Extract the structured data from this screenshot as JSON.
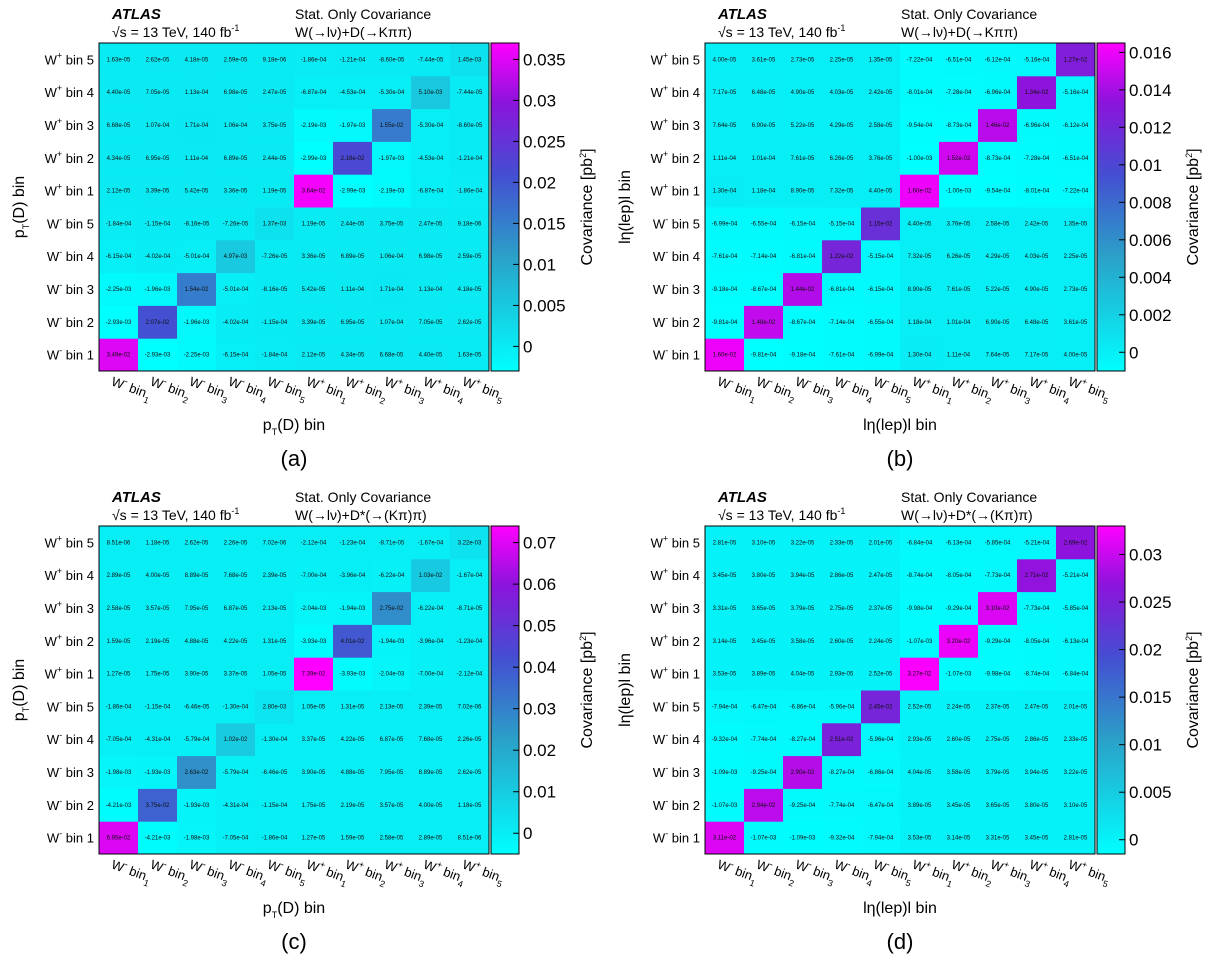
{
  "panels": [
    {
      "atlas": "ATLAS",
      "energy": "√s = 13 TeV, 140 fb",
      "energy_sup": "-1",
      "header1": "Stat. Only Covariance",
      "header2": "W(→lν)+D(→Kππ)",
      "label": "(a)",
      "xtitle": "p",
      "xtitle_sub": "T",
      "xtitle_rest": "(D) bin",
      "ytitle": "p",
      "ytitle_sub": "T",
      "ytitle_rest": "(D) bin",
      "ctitle": "Covariance [pb",
      "ctitle_sup": "2",
      "ctitle_end": "]"
    },
    {
      "atlas": "ATLAS",
      "energy": "√s = 13 TeV, 140 fb",
      "energy_sup": "-1",
      "header1": "Stat. Only Covariance",
      "header2": "W(→lν)+D(→Kππ)",
      "label": "(b)",
      "xtitle": "lη(lep)l bin",
      "xtitle_sub": "",
      "xtitle_rest": "",
      "ytitle": "lη(lep)l bin",
      "ytitle_sub": "",
      "ytitle_rest": "",
      "ctitle": "Covariance [pb",
      "ctitle_sup": "2",
      "ctitle_end": "]"
    },
    {
      "atlas": "ATLAS",
      "energy": "√s = 13 TeV, 140 fb",
      "energy_sup": "-1",
      "header1": "Stat. Only Covariance",
      "header2": "W(→lν)+D*(→(Kπ)π)",
      "label": "(c)",
      "xtitle": "p",
      "xtitle_sub": "T",
      "xtitle_rest": "(D) bin",
      "ytitle": "p",
      "ytitle_sub": "T",
      "ytitle_rest": "(D) bin",
      "ctitle": "Covariance [pb",
      "ctitle_sup": "2",
      "ctitle_end": "]"
    },
    {
      "atlas": "ATLAS",
      "energy": "√s = 13 TeV, 140 fb",
      "energy_sup": "-1",
      "header1": "Stat. Only Covariance",
      "header2": "W(→lν)+D*(→(Kπ)π)",
      "label": "(d)",
      "xtitle": "lη(lep)l bin",
      "xtitle_sub": "",
      "xtitle_rest": "",
      "ytitle": "lη(lep)l bin",
      "ytitle_sub": "",
      "ytitle_rest": "",
      "ctitle": "Covariance [pb",
      "ctitle_sup": "2",
      "ctitle_end": "]"
    }
  ],
  "chart_data": [
    {
      "type": "heatmap",
      "categories": [
        [
          "W",
          "-",
          "bin 1"
        ],
        [
          "W",
          "-",
          "bin 2"
        ],
        [
          "W",
          "-",
          "bin 3"
        ],
        [
          "W",
          "-",
          "bin 4"
        ],
        [
          "W",
          "-",
          "bin 5"
        ],
        [
          "W",
          "+",
          "bin 1"
        ],
        [
          "W",
          "+",
          "bin 2"
        ],
        [
          "W",
          "+",
          "bin 3"
        ],
        [
          "W",
          "+",
          "bin 4"
        ],
        [
          "W",
          "+",
          "bin 5"
        ]
      ],
      "zlim": [
        -0.003,
        0.037
      ],
      "colorbar_ticks": [
        0,
        0.005,
        0.01,
        0.015,
        0.02,
        0.025,
        0.03,
        0.035
      ],
      "colorbar_tick_labels": [
        "0",
        "0.005",
        "0.01",
        "0.015",
        "0.02",
        "0.025",
        "0.03",
        "0.035"
      ],
      "labels": [
        [
          "3.49e-02",
          "-2.93e-03",
          "-2.25e-03",
          "-6.15e-04",
          "-1.84e-04",
          "2.12e-05",
          "4.34e-05",
          "6.68e-05",
          "4.40e-05",
          "1.63e-05"
        ],
        [
          "-2.93e-03",
          "2.07e-02",
          "-1.96e-03",
          "-4.02e-04",
          "-1.15e-04",
          "3.39e-05",
          "6.95e-05",
          "1.07e-04",
          "7.05e-05",
          "2.62e-05"
        ],
        [
          "-2.25e-03",
          "-1.96e-03",
          "1.54e-02",
          "-5.01e-04",
          "-8.16e-05",
          "5.42e-05",
          "1.11e-04",
          "1.71e-04",
          "1.13e-04",
          "4.18e-05"
        ],
        [
          "-6.15e-04",
          "-4.02e-04",
          "-5.01e-04",
          "4.97e-03",
          "-7.26e-05",
          "3.36e-05",
          "6.89e-05",
          "1.06e-04",
          "6.98e-05",
          "2.59e-05"
        ],
        [
          "-1.84e-04",
          "-1.15e-04",
          "-8.16e-05",
          "-7.26e-05",
          "1.37e-03",
          "1.19e-05",
          "2.44e-05",
          "3.75e-05",
          "2.47e-05",
          "9.18e-06"
        ],
        [
          "2.12e-05",
          "3.39e-05",
          "5.42e-05",
          "3.36e-05",
          "1.19e-05",
          "3.64e-02",
          "-2.99e-03",
          "-2.19e-03",
          "-6.87e-04",
          "-1.86e-04"
        ],
        [
          "4.34e-05",
          "6.95e-05",
          "1.11e-04",
          "6.89e-05",
          "2.44e-05",
          "-2.99e-03",
          "2.18e-02",
          "-1.97e-03",
          "-4.53e-04",
          "-1.21e-04"
        ],
        [
          "6.68e-05",
          "1.07e-04",
          "1.71e-04",
          "1.06e-04",
          "3.75e-05",
          "-2.19e-03",
          "-1.97e-03",
          "1.55e-02",
          "-5.30e-04",
          "-8.60e-05"
        ],
        [
          "4.40e-05",
          "7.05e-05",
          "1.13e-04",
          "6.98e-05",
          "2.47e-05",
          "-6.87e-04",
          "-4.53e-04",
          "-5.30e-04",
          "5.10e-03",
          "-7.44e-05"
        ],
        [
          "1.63e-05",
          "2.62e-05",
          "4.18e-05",
          "2.59e-05",
          "9.18e-06",
          "-1.86e-04",
          "-1.21e-04",
          "-8.60e-05",
          "-7.44e-05",
          "1.45e-03"
        ]
      ]
    },
    {
      "type": "heatmap",
      "categories": [
        [
          "W",
          "-",
          "bin 1"
        ],
        [
          "W",
          "-",
          "bin 2"
        ],
        [
          "W",
          "-",
          "bin 3"
        ],
        [
          "W",
          "-",
          "bin 4"
        ],
        [
          "W",
          "-",
          "bin 5"
        ],
        [
          "W",
          "+",
          "bin 1"
        ],
        [
          "W",
          "+",
          "bin 2"
        ],
        [
          "W",
          "+",
          "bin 3"
        ],
        [
          "W",
          "+",
          "bin 4"
        ],
        [
          "W",
          "+",
          "bin 5"
        ]
      ],
      "zlim": [
        -0.001,
        0.0165
      ],
      "colorbar_ticks": [
        0,
        0.002,
        0.004,
        0.006,
        0.008,
        0.01,
        0.012,
        0.014,
        0.016
      ],
      "colorbar_tick_labels": [
        "0",
        "0.002",
        "0.004",
        "0.006",
        "0.008",
        "0.01",
        "0.012",
        "0.014",
        "0.016"
      ],
      "labels": [
        [
          "1.60e-02",
          "-9.81e-04",
          "-9.18e-04",
          "-7.61e-04",
          "-6.99e-04",
          "1.30e-04",
          "1.11e-04",
          "7.64e-05",
          "7.17e-05",
          "4.00e-05"
        ],
        [
          "-9.81e-04",
          "1.48e-02",
          "-8.67e-04",
          "-7.14e-04",
          "-6.55e-04",
          "1.18e-04",
          "1.01e-04",
          "6.90e-05",
          "6.48e-05",
          "3.61e-05"
        ],
        [
          "-9.18e-04",
          "-8.67e-04",
          "1.44e-02",
          "-6.81e-04",
          "-6.15e-04",
          "8.90e-05",
          "7.61e-05",
          "5.22e-05",
          "4.90e-05",
          "2.73e-05"
        ],
        [
          "-7.61e-04",
          "-7.14e-04",
          "-6.81e-04",
          "1.22e-02",
          "-5.15e-04",
          "7.32e-05",
          "6.26e-05",
          "4.29e-05",
          "4.03e-05",
          "2.25e-05"
        ],
        [
          "-6.99e-04",
          "-6.55e-04",
          "-6.15e-04",
          "-5.15e-04",
          "1.15e-02",
          "4.40e-05",
          "3.76e-05",
          "2.58e-05",
          "2.42e-05",
          "1.35e-05"
        ],
        [
          "1.30e-04",
          "1.18e-04",
          "8.90e-05",
          "7.32e-05",
          "4.40e-05",
          "1.60e-02",
          "-1.00e-03",
          "-9.54e-04",
          "-8.01e-04",
          "-7.22e-04"
        ],
        [
          "1.11e-04",
          "1.01e-04",
          "7.61e-05",
          "6.26e-05",
          "3.76e-05",
          "-1.00e-03",
          "1.52e-02",
          "-8.73e-04",
          "-7.28e-04",
          "-6.51e-04"
        ],
        [
          "7.64e-05",
          "6.90e-05",
          "5.22e-05",
          "4.29e-05",
          "2.58e-05",
          "-9.54e-04",
          "-8.73e-04",
          "1.46e-02",
          "-6.96e-04",
          "-6.12e-04"
        ],
        [
          "7.17e-05",
          "6.48e-05",
          "4.90e-05",
          "4.03e-05",
          "2.42e-05",
          "-8.01e-04",
          "-7.28e-04",
          "-6.96e-04",
          "1.34e-02",
          "-5.16e-04"
        ],
        [
          "4.00e-05",
          "3.61e-05",
          "2.73e-05",
          "2.25e-05",
          "1.35e-05",
          "-7.22e-04",
          "-6.51e-04",
          "-6.12e-04",
          "-5.16e-04",
          "1.27e-02"
        ]
      ]
    },
    {
      "type": "heatmap",
      "categories": [
        [
          "W",
          "-",
          "bin 1"
        ],
        [
          "W",
          "-",
          "bin 2"
        ],
        [
          "W",
          "-",
          "bin 3"
        ],
        [
          "W",
          "-",
          "bin 4"
        ],
        [
          "W",
          "-",
          "bin 5"
        ],
        [
          "W",
          "+",
          "bin 1"
        ],
        [
          "W",
          "+",
          "bin 2"
        ],
        [
          "W",
          "+",
          "bin 3"
        ],
        [
          "W",
          "+",
          "bin 4"
        ],
        [
          "W",
          "+",
          "bin 5"
        ]
      ],
      "zlim": [
        -0.005,
        0.074
      ],
      "colorbar_ticks": [
        0,
        0.01,
        0.02,
        0.03,
        0.04,
        0.05,
        0.06,
        0.07
      ],
      "colorbar_tick_labels": [
        "0",
        "0.01",
        "0.02",
        "0.03",
        "0.04",
        "0.05",
        "0.06",
        "0.07"
      ],
      "labels": [
        [
          "6.95e-02",
          "-4.21e-03",
          "-1.98e-03",
          "-7.05e-04",
          "-1.86e-04",
          "1.27e-05",
          "1.59e-05",
          "2.58e-05",
          "2.89e-05",
          "8.51e-06"
        ],
        [
          "-4.21e-03",
          "3.75e-02",
          "-1.93e-03",
          "-4.31e-04",
          "-1.15e-04",
          "1.75e-05",
          "2.19e-05",
          "3.57e-05",
          "4.00e-05",
          "1.18e-05"
        ],
        [
          "-1.98e-03",
          "-1.93e-03",
          "2.63e-02",
          "-5.79e-04",
          "-6.46e-05",
          "3.90e-05",
          "4.88e-05",
          "7.95e-05",
          "8.89e-05",
          "2.62e-05"
        ],
        [
          "-7.05e-04",
          "-4.31e-04",
          "-5.79e-04",
          "1.02e-02",
          "-1.30e-04",
          "3.37e-05",
          "4.22e-05",
          "6.87e-05",
          "7.68e-05",
          "2.26e-05"
        ],
        [
          "-1.86e-04",
          "-1.15e-04",
          "-6.46e-05",
          "-1.30e-04",
          "2.80e-03",
          "1.05e-05",
          "1.31e-05",
          "2.13e-05",
          "2.39e-05",
          "7.02e-06"
        ],
        [
          "1.27e-05",
          "1.75e-05",
          "3.90e-05",
          "3.37e-05",
          "1.05e-05",
          "7.39e-02",
          "-3.93e-03",
          "-2.04e-03",
          "-7.00e-04",
          "-2.12e-04"
        ],
        [
          "1.59e-05",
          "2.19e-05",
          "4.88e-05",
          "4.22e-05",
          "1.31e-05",
          "-3.93e-03",
          "4.01e-02",
          "-1.94e-03",
          "-3.96e-04",
          "-1.23e-04"
        ],
        [
          "2.58e-05",
          "3.57e-05",
          "7.95e-05",
          "6.87e-05",
          "2.13e-05",
          "-2.04e-03",
          "-1.94e-03",
          "2.75e-02",
          "-6.22e-04",
          "-8.71e-05"
        ],
        [
          "2.89e-05",
          "4.00e-05",
          "8.89e-05",
          "7.68e-05",
          "2.39e-05",
          "-7.00e-04",
          "-3.96e-04",
          "-6.22e-04",
          "1.03e-02",
          "-1.67e-04"
        ],
        [
          "8.51e-06",
          "1.18e-05",
          "2.62e-05",
          "2.26e-05",
          "7.02e-06",
          "-2.12e-04",
          "-1.23e-04",
          "-8.71e-05",
          "-1.67e-04",
          "3.22e-03"
        ]
      ]
    },
    {
      "type": "heatmap",
      "categories": [
        [
          "W",
          "-",
          "bin 1"
        ],
        [
          "W",
          "-",
          "bin 2"
        ],
        [
          "W",
          "-",
          "bin 3"
        ],
        [
          "W",
          "-",
          "bin 4"
        ],
        [
          "W",
          "-",
          "bin 5"
        ],
        [
          "W",
          "+",
          "bin 1"
        ],
        [
          "W",
          "+",
          "bin 2"
        ],
        [
          "W",
          "+",
          "bin 3"
        ],
        [
          "W",
          "+",
          "bin 4"
        ],
        [
          "W",
          "+",
          "bin 5"
        ]
      ],
      "zlim": [
        -0.0015,
        0.033
      ],
      "colorbar_ticks": [
        0,
        0.005,
        0.01,
        0.015,
        0.02,
        0.025,
        0.03
      ],
      "colorbar_tick_labels": [
        "0",
        "0.005",
        "0.01",
        "0.015",
        "0.02",
        "0.025",
        "0.03"
      ],
      "labels": [
        [
          "3.11e-02",
          "-1.07e-03",
          "-1.09e-03",
          "-9.32e-04",
          "-7.94e-04",
          "3.53e-05",
          "3.14e-05",
          "3.31e-05",
          "3.45e-05",
          "2.81e-05"
        ],
        [
          "-1.07e-03",
          "2.94e-02",
          "-9.25e-04",
          "-7.74e-04",
          "-6.47e-04",
          "3.89e-05",
          "3.45e-05",
          "3.65e-05",
          "3.80e-05",
          "3.10e-05"
        ],
        [
          "-1.09e-03",
          "-9.25e-04",
          "2.90e-02",
          "-8.27e-04",
          "-6.86e-04",
          "4.04e-05",
          "3.58e-05",
          "3.79e-05",
          "3.94e-05",
          "3.22e-05"
        ],
        [
          "-9.32e-04",
          "-7.74e-04",
          "-8.27e-04",
          "2.51e-02",
          "-5.96e-04",
          "2.93e-05",
          "2.60e-05",
          "2.75e-05",
          "2.86e-05",
          "2.33e-05"
        ],
        [
          "-7.94e-04",
          "-6.47e-04",
          "-6.86e-04",
          "-5.96e-04",
          "2.45e-02",
          "2.52e-05",
          "2.24e-05",
          "2.37e-05",
          "2.47e-05",
          "2.01e-05"
        ],
        [
          "3.53e-05",
          "3.89e-05",
          "4.04e-05",
          "2.93e-05",
          "2.52e-05",
          "3.27e-02",
          "-1.07e-03",
          "-9.98e-04",
          "-8.74e-04",
          "-6.84e-04"
        ],
        [
          "3.14e-05",
          "3.45e-05",
          "3.58e-05",
          "2.60e-05",
          "2.24e-05",
          "-1.07e-03",
          "3.20e-02",
          "-9.29e-04",
          "-8.05e-04",
          "-6.13e-04"
        ],
        [
          "3.31e-05",
          "3.65e-05",
          "3.79e-05",
          "2.75e-05",
          "2.37e-05",
          "-9.98e-04",
          "-9.29e-04",
          "3.10e-02",
          "-7.73e-04",
          "-5.85e-04"
        ],
        [
          "3.45e-05",
          "3.80e-05",
          "3.94e-05",
          "2.86e-05",
          "2.47e-05",
          "-8.74e-04",
          "-8.05e-04",
          "-7.73e-04",
          "2.71e-02",
          "-5.21e-04"
        ],
        [
          "2.81e-05",
          "3.10e-05",
          "3.22e-05",
          "2.33e-05",
          "2.01e-05",
          "-6.84e-04",
          "-6.13e-04",
          "-5.85e-04",
          "-5.21e-04",
          "2.69e-02"
        ]
      ]
    }
  ]
}
